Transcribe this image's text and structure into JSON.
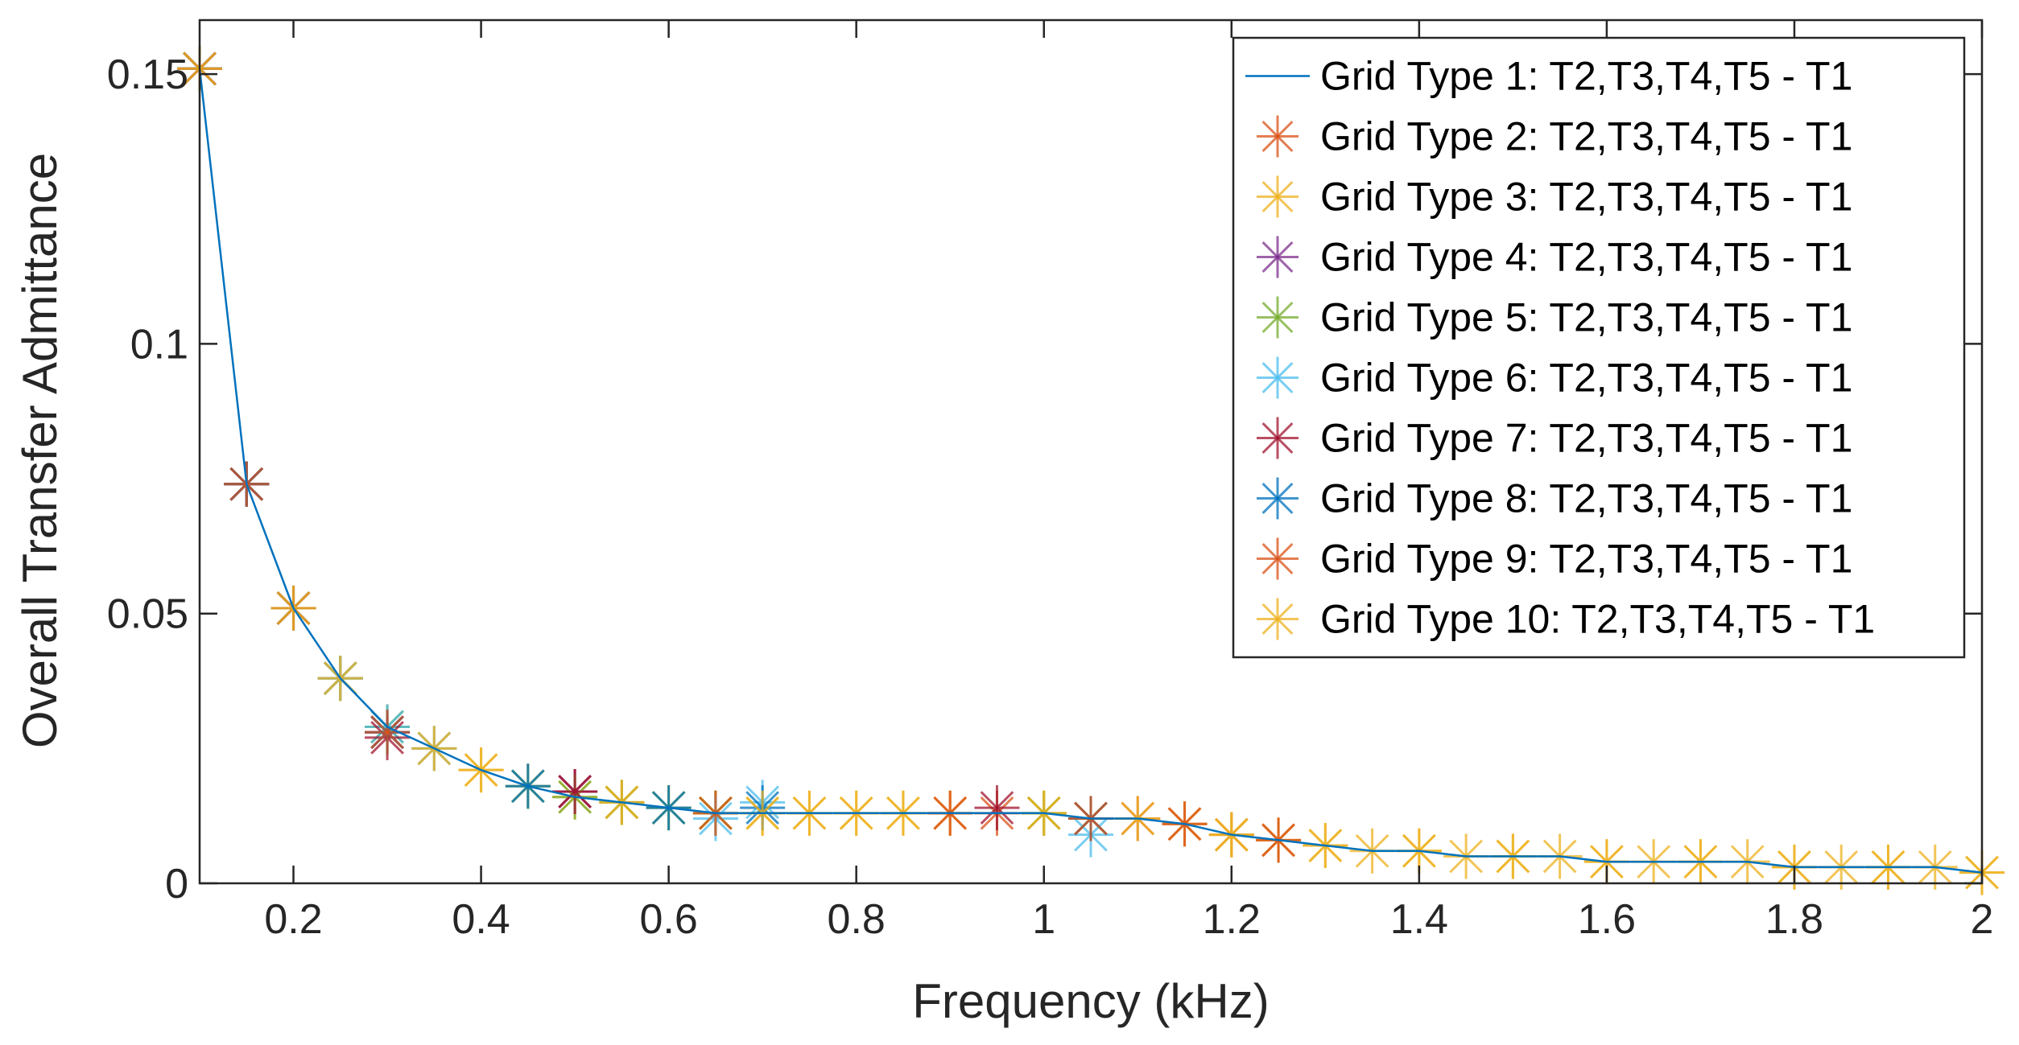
{
  "chart_data": {
    "type": "line",
    "title": "",
    "xlabel": "Frequency (kHz)",
    "ylabel": "Overall Transfer Admittance",
    "xlim": [
      0.1,
      2
    ],
    "ylim": [
      0,
      0.16
    ],
    "x_ticks": [
      0.2,
      0.4,
      0.6,
      0.8,
      1,
      1.2,
      1.4,
      1.6,
      1.8,
      2
    ],
    "x_tick_labels": [
      "0.2",
      "0.4",
      "0.6",
      "0.8",
      "1",
      "1.2",
      "1.4",
      "1.6",
      "1.8",
      "2"
    ],
    "y_ticks": [
      0,
      0.05,
      0.1,
      0.15
    ],
    "y_tick_labels": [
      "0",
      "0.05",
      "0.1",
      "0.15"
    ],
    "grid": false,
    "legend_position": "top-right",
    "series": [
      {
        "name": "Grid Type 1: T2,T3,T4,T5 - T1",
        "style": "line",
        "color": "#0072BD",
        "x": [
          0.1,
          0.15,
          0.2,
          0.25,
          0.3,
          0.35,
          0.4,
          0.45,
          0.5,
          0.55,
          0.6,
          0.65,
          0.7,
          0.75,
          0.8,
          0.85,
          0.9,
          0.95,
          1.0,
          1.05,
          1.1,
          1.15,
          1.2,
          1.25,
          1.3,
          1.35,
          1.4,
          1.45,
          1.5,
          1.55,
          1.6,
          1.65,
          1.7,
          1.75,
          1.8,
          1.85,
          1.9,
          1.95,
          2.0
        ],
        "values": [
          0.151,
          0.074,
          0.051,
          0.038,
          0.029,
          0.025,
          0.021,
          0.018,
          0.016,
          0.015,
          0.014,
          0.013,
          0.013,
          0.013,
          0.013,
          0.013,
          0.013,
          0.013,
          0.013,
          0.012,
          0.012,
          0.011,
          0.009,
          0.008,
          0.007,
          0.006,
          0.006,
          0.005,
          0.005,
          0.005,
          0.004,
          0.004,
          0.004,
          0.004,
          0.003,
          0.003,
          0.003,
          0.003,
          0.002
        ]
      },
      {
        "name": "Grid Type 2: T2,T3,T4,T5 - T1",
        "style": "marker",
        "color": "#D95319",
        "x": [
          0.1,
          0.15,
          0.2,
          0.3,
          0.5,
          0.65,
          0.9,
          0.95,
          1.05,
          1.1,
          1.15,
          1.2,
          1.25
        ],
        "values": [
          0.151,
          0.074,
          0.051,
          0.028,
          0.017,
          0.013,
          0.013,
          0.013,
          0.012,
          0.012,
          0.011,
          0.009,
          0.008
        ]
      },
      {
        "name": "Grid Type 3: T2,T3,T4,T5 - T1",
        "style": "marker",
        "color": "#EDB120",
        "x": [
          0.1,
          0.15,
          0.2,
          0.25,
          0.3,
          0.35,
          0.4,
          0.45,
          0.5,
          0.55,
          0.6,
          0.65,
          0.7,
          0.75,
          0.8,
          0.85,
          0.9,
          1.0,
          1.05,
          1.1,
          1.15,
          1.2,
          1.25,
          1.3,
          1.35,
          1.4,
          1.45,
          1.5,
          1.55,
          1.6,
          1.65,
          1.7,
          1.75,
          1.8,
          1.85,
          1.9,
          1.95,
          2.0
        ],
        "values": [
          0.151,
          0.074,
          0.051,
          0.038,
          0.029,
          0.025,
          0.021,
          0.018,
          0.016,
          0.015,
          0.014,
          0.013,
          0.013,
          0.013,
          0.013,
          0.013,
          0.013,
          0.013,
          0.012,
          0.012,
          0.011,
          0.009,
          0.008,
          0.007,
          0.006,
          0.006,
          0.005,
          0.005,
          0.005,
          0.004,
          0.004,
          0.004,
          0.004,
          0.003,
          0.003,
          0.003,
          0.003,
          0.002
        ]
      },
      {
        "name": "Grid Type 4: T2,T3,T4,T5 - T1",
        "style": "marker",
        "color": "#7E2F8E",
        "x": [
          0.1,
          0.15,
          0.2,
          0.25,
          0.3,
          0.5
        ],
        "values": [
          0.151,
          0.074,
          0.051,
          0.038,
          0.028,
          0.017
        ]
      },
      {
        "name": "Grid Type 5: T2,T3,T4,T5 - T1",
        "style": "marker",
        "color": "#77AC30",
        "x": [
          0.1,
          0.15,
          0.2,
          0.25,
          0.3,
          0.45,
          0.5,
          0.55,
          0.6,
          0.65,
          1.0
        ],
        "values": [
          0.151,
          0.074,
          0.051,
          0.038,
          0.029,
          0.018,
          0.016,
          0.015,
          0.014,
          0.013,
          0.013
        ]
      },
      {
        "name": "Grid Type 6: T2,T3,T4,T5 - T1",
        "style": "marker",
        "color": "#4DBEEE",
        "x": [
          0.1,
          0.15,
          0.2,
          0.25,
          0.3,
          0.35,
          0.65,
          0.7,
          1.05
        ],
        "values": [
          0.151,
          0.074,
          0.051,
          0.038,
          0.029,
          0.025,
          0.012,
          0.015,
          0.009
        ]
      },
      {
        "name": "Grid Type 7: T2,T3,T4,T5 - T1",
        "style": "marker",
        "color": "#A2142F",
        "x": [
          0.1,
          0.15,
          0.2,
          0.3,
          0.5,
          0.95
        ],
        "values": [
          0.151,
          0.074,
          0.051,
          0.027,
          0.017,
          0.014
        ]
      },
      {
        "name": "Grid Type 8: T2,T3,T4,T5 - T1",
        "style": "marker",
        "color": "#0072BD",
        "x": [
          0.1,
          0.15,
          0.2,
          0.3,
          0.45,
          0.6,
          0.7,
          1.05
        ],
        "values": [
          0.151,
          0.074,
          0.051,
          0.028,
          0.018,
          0.014,
          0.014,
          0.012
        ]
      },
      {
        "name": "Grid Type 9: T2,T3,T4,T5 - T1",
        "style": "marker",
        "color": "#D95319",
        "x": [
          0.1,
          0.15,
          0.2,
          0.3,
          0.65,
          0.9,
          1.05,
          1.15,
          1.25
        ],
        "values": [
          0.151,
          0.074,
          0.051,
          0.028,
          0.013,
          0.013,
          0.012,
          0.011,
          0.008
        ]
      },
      {
        "name": "Grid Type 10: T2,T3,T4,T5 - T1",
        "style": "marker",
        "color": "#EDB120",
        "x": [
          0.1,
          0.2,
          0.25,
          0.35,
          0.4,
          0.55,
          0.7,
          0.75,
          0.8,
          0.85,
          1.0,
          1.2,
          1.3,
          1.4,
          1.5,
          1.6,
          1.7,
          1.8,
          1.9,
          2.0
        ],
        "values": [
          0.151,
          0.051,
          0.038,
          0.025,
          0.021,
          0.015,
          0.013,
          0.013,
          0.013,
          0.013,
          0.013,
          0.009,
          0.007,
          0.006,
          0.005,
          0.004,
          0.004,
          0.003,
          0.003,
          0.002
        ]
      }
    ]
  }
}
